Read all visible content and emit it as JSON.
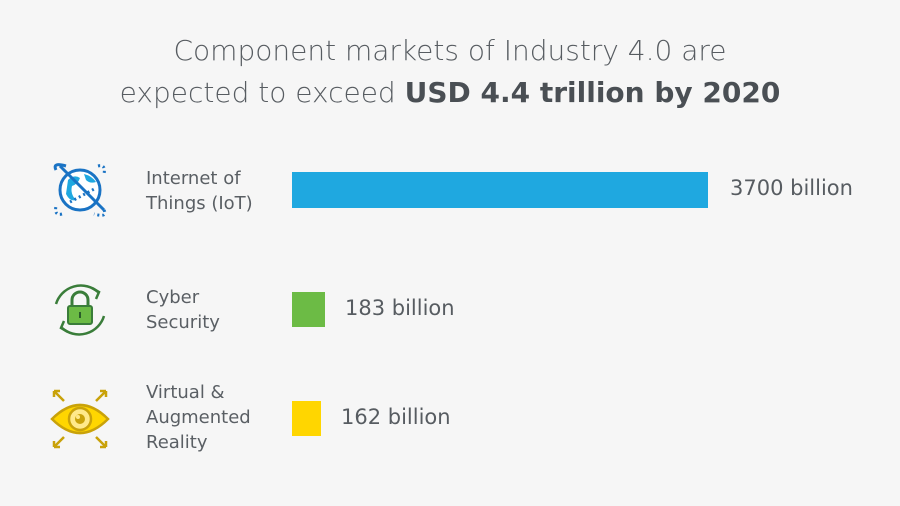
{
  "title": {
    "line1": "Component markets of Industry 4.0 are",
    "line2_prefix": "expected to exceed ",
    "line2_bold": "USD 4.4 trillion by 2020"
  },
  "chart_data": {
    "type": "bar",
    "orientation": "horizontal",
    "categories": [
      "Internet of Things (IoT)",
      "Cyber Security",
      "Virtual & Augmented Reality"
    ],
    "values": [
      3700,
      183,
      162
    ],
    "unit": "billion",
    "data_labels": [
      "3700 billion",
      "183 billion",
      "162 billion"
    ],
    "colors": [
      "#1fa8e0",
      "#6cbb45",
      "#ffd600"
    ],
    "icons": [
      "globe-satellite-icon",
      "lock-refresh-icon",
      "eye-expand-icon"
    ],
    "grid": false
  },
  "rows": [
    {
      "label_lines": [
        "Internet of",
        "Things (IoT)"
      ]
    },
    {
      "label_lines": [
        "Cyber",
        "Security"
      ]
    },
    {
      "label_lines": [
        "Virtual &",
        "Augmented",
        "Reality"
      ]
    }
  ]
}
